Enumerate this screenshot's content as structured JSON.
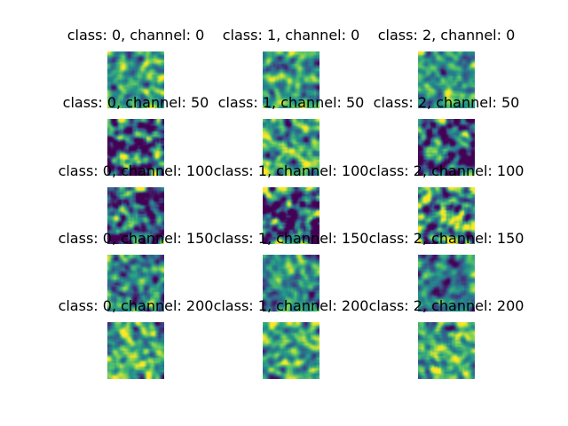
{
  "chart_data": {
    "type": "heatmap",
    "colormap": "viridis",
    "colormap_stops": [
      "#440154",
      "#3b528b",
      "#21918c",
      "#5ec962",
      "#fde725"
    ],
    "axes_visible": false,
    "grid": false,
    "rows": 5,
    "cols": 3,
    "panels": [
      {
        "title": "class: 0, channel: 0",
        "class": 0,
        "channel": 0,
        "contrast": 0.55,
        "bias": 0.55
      },
      {
        "title": "class: 1, channel: 0",
        "class": 1,
        "channel": 0,
        "contrast": 0.55,
        "bias": 0.55
      },
      {
        "title": "class: 2, channel: 0",
        "class": 2,
        "channel": 0,
        "contrast": 0.55,
        "bias": 0.55
      },
      {
        "title": "class: 0, channel: 50",
        "class": 0,
        "channel": 50,
        "contrast": 0.85,
        "bias": 0.45
      },
      {
        "title": "class: 1, channel: 50",
        "class": 1,
        "channel": 50,
        "contrast": 0.75,
        "bias": 0.55
      },
      {
        "title": "class: 2, channel: 50",
        "class": 2,
        "channel": 50,
        "contrast": 0.85,
        "bias": 0.4
      },
      {
        "title": "class: 0, channel: 100",
        "class": 0,
        "channel": 100,
        "contrast": 1.0,
        "bias": 0.45
      },
      {
        "title": "class: 1, channel: 100",
        "class": 1,
        "channel": 100,
        "contrast": 1.0,
        "bias": 0.4
      },
      {
        "title": "class: 2, channel: 100",
        "class": 2,
        "channel": 100,
        "contrast": 0.95,
        "bias": 0.55
      },
      {
        "title": "class: 0, channel: 150",
        "class": 0,
        "channel": 150,
        "contrast": 0.55,
        "bias": 0.45
      },
      {
        "title": "class: 1, channel: 150",
        "class": 1,
        "channel": 150,
        "contrast": 0.5,
        "bias": 0.45
      },
      {
        "title": "class: 2, channel: 150",
        "class": 2,
        "channel": 150,
        "contrast": 0.55,
        "bias": 0.45
      },
      {
        "title": "class: 0, channel: 200",
        "class": 0,
        "channel": 200,
        "contrast": 0.65,
        "bias": 0.6
      },
      {
        "title": "class: 1, channel: 200",
        "class": 1,
        "channel": 200,
        "contrast": 0.6,
        "bias": 0.6
      },
      {
        "title": "class: 2, channel: 200",
        "class": 2,
        "channel": 200,
        "contrast": 0.65,
        "bias": 0.55
      }
    ]
  }
}
